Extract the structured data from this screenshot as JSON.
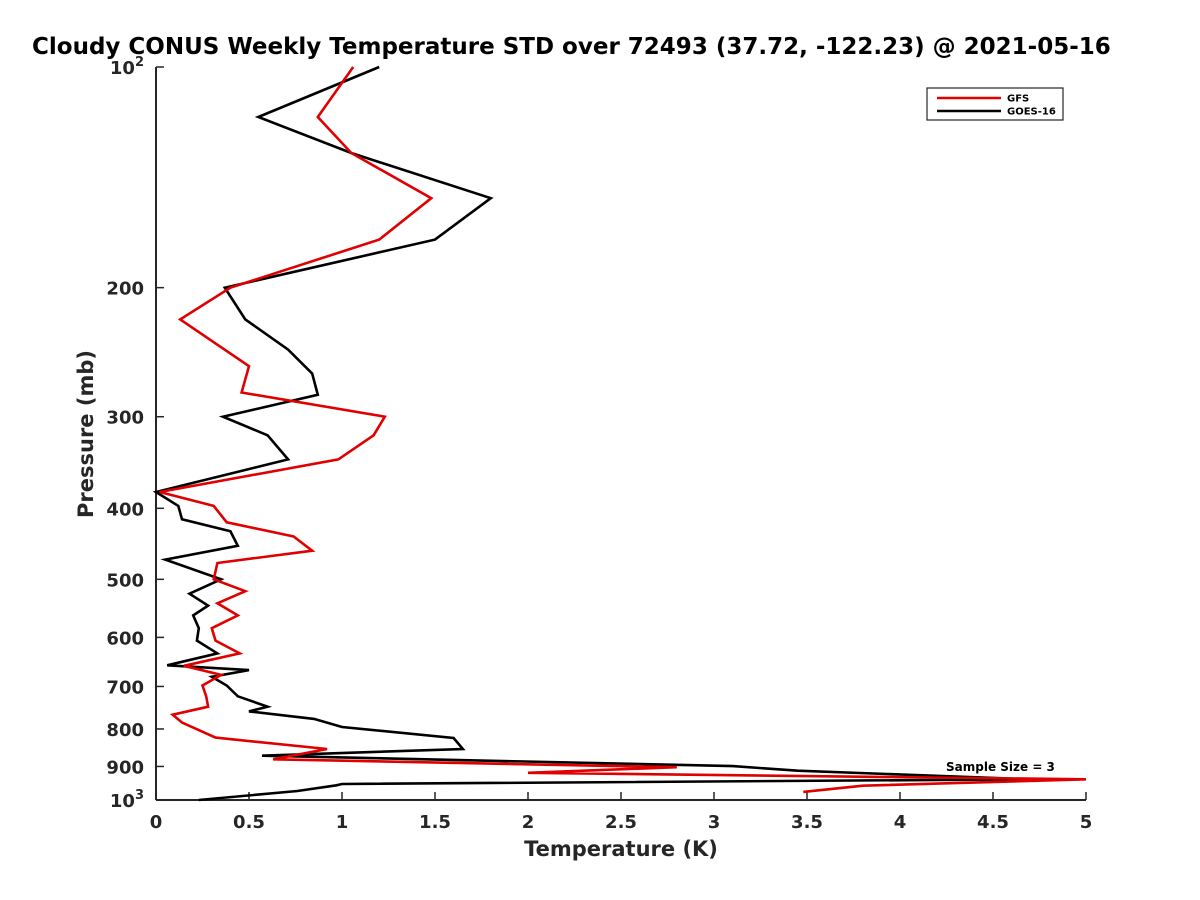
{
  "chart_data": {
    "type": "line",
    "title": "Cloudy CONUS Weekly Temperature STD over 72493 (37.72, -122.23) @ 2021-05-16",
    "xlabel": "Temperature (K)",
    "ylabel": "Pressure (mb)",
    "xlim": [
      0,
      5
    ],
    "ylim": [
      100,
      1000
    ],
    "y_scale": "log",
    "y_reversed": true,
    "x_ticks": [
      "0",
      "0.5",
      "1",
      "1.5",
      "2",
      "2.5",
      "3",
      "3.5",
      "4",
      "4.5",
      "5"
    ],
    "y_ticks": [
      {
        "value": 100,
        "label": "10",
        "exp": "2"
      },
      {
        "value": 200,
        "label": "200"
      },
      {
        "value": 300,
        "label": "300"
      },
      {
        "value": 400,
        "label": "400"
      },
      {
        "value": 500,
        "label": "500"
      },
      {
        "value": 600,
        "label": "600"
      },
      {
        "value": 700,
        "label": "700"
      },
      {
        "value": 800,
        "label": "800"
      },
      {
        "value": 900,
        "label": "900"
      },
      {
        "value": 1000,
        "label": "10",
        "exp": "3"
      }
    ],
    "grid": false,
    "legend_position": "top-right",
    "annotation": "Sample Size = 3",
    "series": [
      {
        "name": "GFS",
        "color": "#e00000",
        "points": [
          [
            1.06,
            100
          ],
          [
            0.87,
            117
          ],
          [
            1.05,
            131
          ],
          [
            1.48,
            151
          ],
          [
            1.2,
            172
          ],
          [
            0.4,
            200
          ],
          [
            0.13,
            221
          ],
          [
            0.5,
            256
          ],
          [
            0.46,
            278
          ],
          [
            1.23,
            300
          ],
          [
            1.17,
            318
          ],
          [
            0.98,
            343
          ],
          [
            0.02,
            380
          ],
          [
            0.31,
            397
          ],
          [
            0.38,
            418
          ],
          [
            0.74,
            437
          ],
          [
            0.84,
            457
          ],
          [
            0.33,
            475
          ],
          [
            0.31,
            500
          ],
          [
            0.48,
            519
          ],
          [
            0.33,
            539
          ],
          [
            0.44,
            560
          ],
          [
            0.3,
            583
          ],
          [
            0.32,
            606
          ],
          [
            0.45,
            631
          ],
          [
            0.15,
            656
          ],
          [
            0.35,
            675
          ],
          [
            0.25,
            698
          ],
          [
            0.27,
            722
          ],
          [
            0.28,
            746
          ],
          [
            0.09,
            765
          ],
          [
            0.14,
            784
          ],
          [
            0.32,
            822
          ],
          [
            0.92,
            852
          ],
          [
            0.63,
            880
          ],
          [
            2.8,
            902
          ],
          [
            2.0,
            918
          ],
          [
            5.0,
            937
          ],
          [
            3.8,
            956
          ],
          [
            3.48,
            975
          ]
        ]
      },
      {
        "name": "GOES-16",
        "color": "#000000",
        "points": [
          [
            1.2,
            100
          ],
          [
            0.55,
            117
          ],
          [
            1.05,
            131
          ],
          [
            1.8,
            151
          ],
          [
            1.5,
            172
          ],
          [
            0.37,
            200
          ],
          [
            0.48,
            221
          ],
          [
            0.71,
            243
          ],
          [
            0.84,
            262
          ],
          [
            0.87,
            280
          ],
          [
            0.36,
            300
          ],
          [
            0.6,
            318
          ],
          [
            0.71,
            343
          ],
          [
            0.0,
            380
          ],
          [
            0.12,
            397
          ],
          [
            0.14,
            414
          ],
          [
            0.4,
            430
          ],
          [
            0.44,
            450
          ],
          [
            0.05,
            470
          ],
          [
            0.35,
            500
          ],
          [
            0.18,
            523
          ],
          [
            0.28,
            543
          ],
          [
            0.2,
            560
          ],
          [
            0.23,
            583
          ],
          [
            0.22,
            606
          ],
          [
            0.33,
            631
          ],
          [
            0.06,
            655
          ],
          [
            0.5,
            665
          ],
          [
            0.3,
            679
          ],
          [
            0.38,
            698
          ],
          [
            0.44,
            722
          ],
          [
            0.6,
            746
          ],
          [
            0.5,
            757
          ],
          [
            0.85,
            775
          ],
          [
            1.0,
            795
          ],
          [
            1.6,
            823
          ],
          [
            1.65,
            852
          ],
          [
            0.57,
            870
          ],
          [
            3.1,
            899
          ],
          [
            3.45,
            912
          ],
          [
            4.7,
            937
          ],
          [
            1.0,
            951
          ],
          [
            0.97,
            955
          ],
          [
            0.76,
            972
          ],
          [
            0.23,
            1000
          ]
        ]
      }
    ]
  }
}
